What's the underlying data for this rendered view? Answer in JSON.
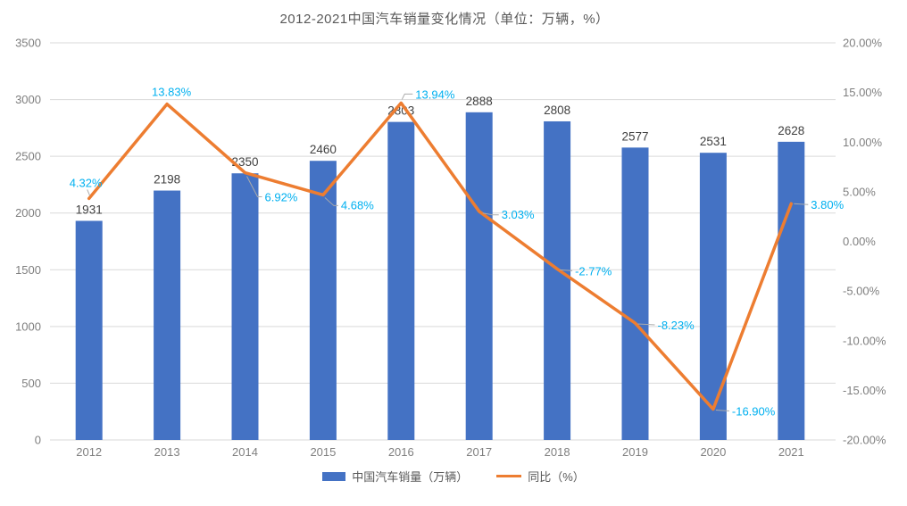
{
  "title": "2012-2021中国汽车销量变化情况（单位：万辆，%）",
  "colors": {
    "bar": "#4472C4",
    "line": "#ED7D31",
    "pct_label": "#00B0F0",
    "value_label": "#404040",
    "axis_label": "#7F7F7F",
    "gridline": "#D9D9D9",
    "leader": "#ABABAB",
    "title": "#595959"
  },
  "legend": {
    "items": [
      {
        "label": "中国汽车销量（万辆）",
        "type": "bar",
        "color": "#4472C4"
      },
      {
        "label": "同比（%）",
        "type": "line",
        "color": "#ED7D31"
      }
    ]
  },
  "chart_data": {
    "type": "combo-bar-line",
    "title": "2012-2021中国汽车销量变化情况（单位：万辆，%）",
    "xlabel": "",
    "ylabel_left": "",
    "ylabel_right": "",
    "grid": true,
    "legend_position": "bottom",
    "categories": [
      "2012",
      "2013",
      "2014",
      "2015",
      "2016",
      "2017",
      "2018",
      "2019",
      "2020",
      "2021"
    ],
    "series": [
      {
        "name": "中国汽车销量（万辆）",
        "type": "bar",
        "axis": "left",
        "values": [
          1931,
          2198,
          2350,
          2460,
          2803,
          2888,
          2808,
          2577,
          2531,
          2628
        ],
        "value_labels": [
          "1931",
          "2198",
          "2350",
          "2460",
          "2803",
          "2888",
          "2808",
          "2577",
          "2531",
          "2628"
        ]
      },
      {
        "name": "同比（%）",
        "type": "line",
        "axis": "right",
        "values": [
          4.32,
          13.83,
          6.92,
          4.68,
          13.94,
          3.03,
          -2.77,
          -8.23,
          -16.9,
          3.8
        ],
        "value_labels": [
          "4.32%",
          "13.83%",
          "6.92%",
          "4.68%",
          "13.94%",
          "3.03%",
          "-2.77%",
          "-8.23%",
          "-16.90%",
          "3.80%"
        ]
      }
    ],
    "left_axis": {
      "min": 0,
      "max": 3500,
      "tick_values": [
        3500,
        3000,
        2500,
        2000,
        1500,
        1000,
        500,
        0
      ],
      "tick_labels": [
        "3500",
        "3000",
        "2500",
        "2000",
        "1500",
        "1000",
        "500",
        "0"
      ]
    },
    "right_axis": {
      "min": -20,
      "max": 20,
      "tick_values": [
        20,
        15,
        10,
        5,
        0,
        -5,
        -10,
        -15,
        -20
      ],
      "tick_labels": [
        "20.00%",
        "15.00%",
        "10.00%",
        "5.00%",
        "0.00%",
        "-5.00%",
        "-10.00%",
        "-15.00%",
        "-20.00%"
      ]
    }
  }
}
